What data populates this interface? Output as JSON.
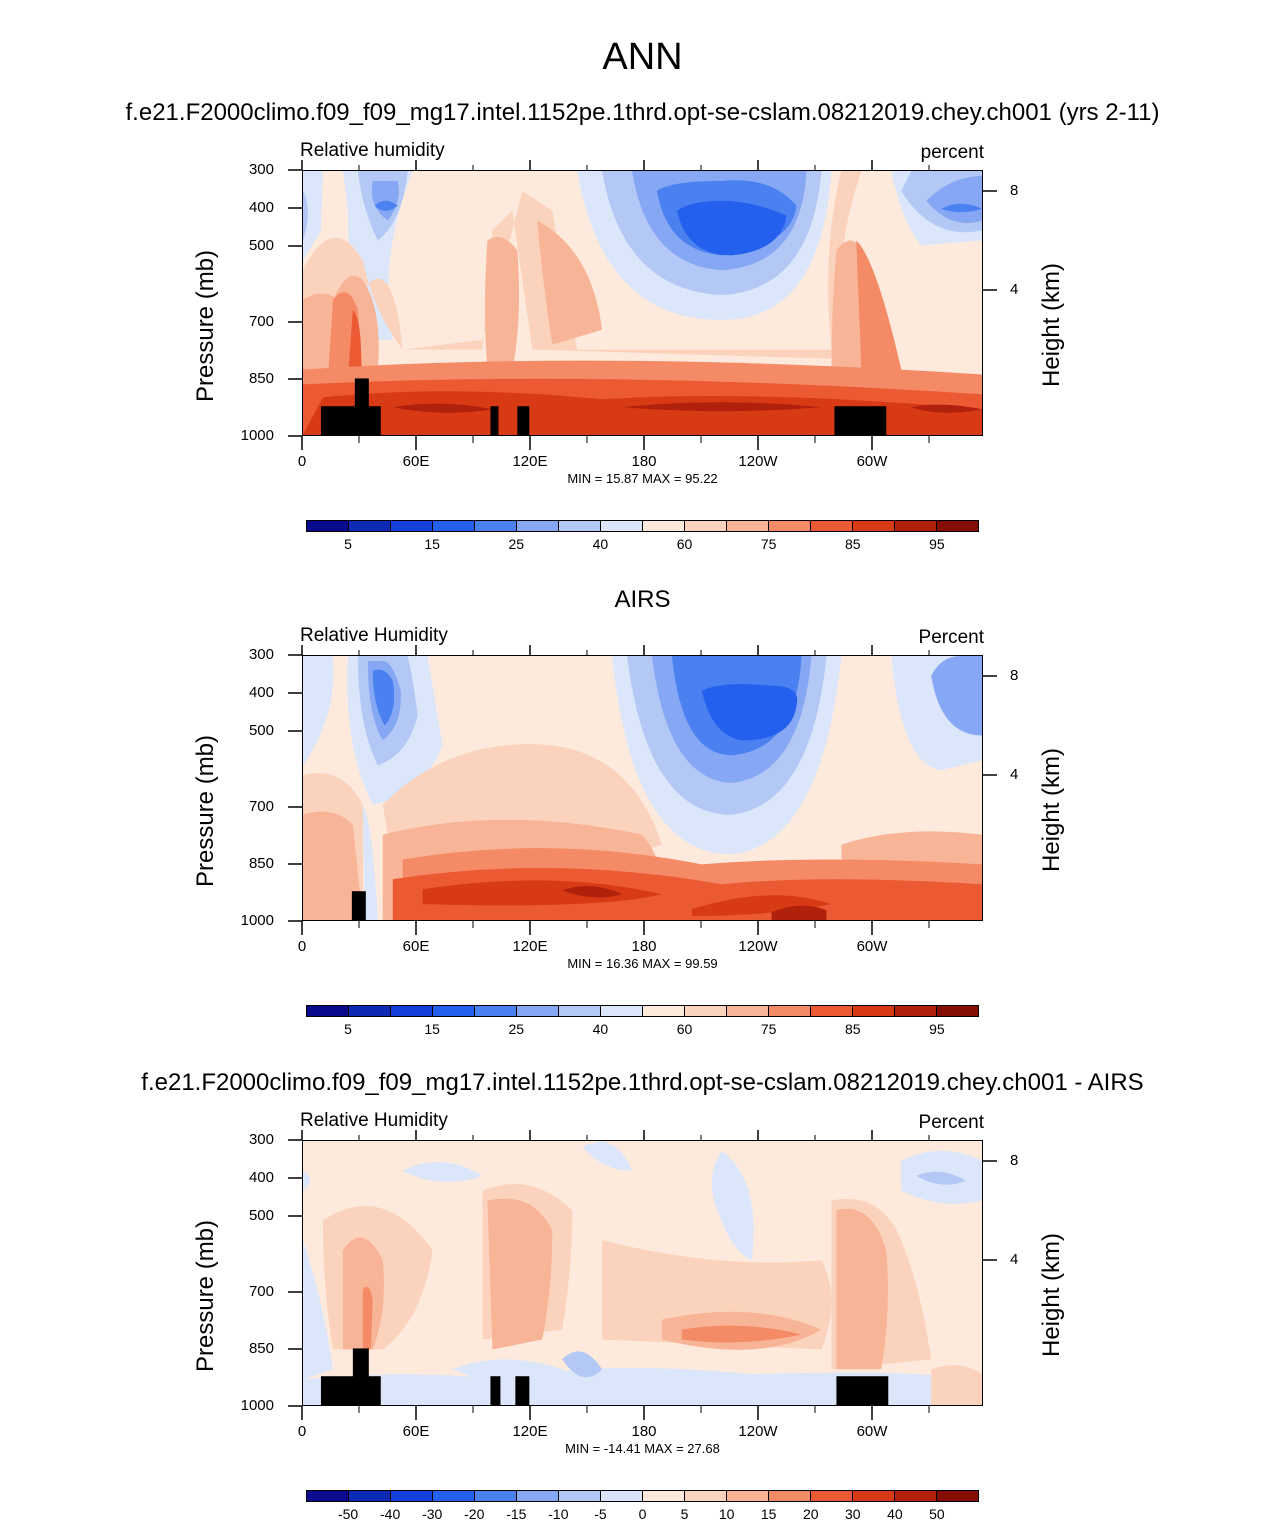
{
  "figure_title": "ANN",
  "panels": [
    {
      "title": "f.e21.F2000climo.f09_f09_mg17.intel.1152pe.1thrd.opt-se-cslam.08212019.chey.ch001 (yrs 2-11)",
      "variable": "Relative humidity",
      "units": "percent",
      "min_max": "MIN =  15.87  MAX =  95.22",
      "colorbar_labels": [
        "5",
        "15",
        "25",
        "40",
        "60",
        "75",
        "85",
        "95"
      ]
    },
    {
      "title": "AIRS",
      "variable": "Relative Humidity",
      "units": "Percent",
      "min_max": "MIN =  16.36  MAX =  99.59",
      "colorbar_labels": [
        "5",
        "15",
        "25",
        "40",
        "60",
        "75",
        "85",
        "95"
      ]
    },
    {
      "title": "f.e21.F2000climo.f09_f09_mg17.intel.1152pe.1thrd.opt-se-cslam.08212019.chey.ch001 - AIRS",
      "variable": "Relative Humidity",
      "units": "Percent",
      "min_max": "MIN = -14.41  MAX =  27.68",
      "colorbar_labels": [
        "-50",
        "-40",
        "-30",
        "-20",
        "-15",
        "-10",
        "-5",
        "0",
        "5",
        "10",
        "15",
        "20",
        "30",
        "40",
        "50"
      ]
    }
  ],
  "axes": {
    "y_left_label": "Pressure (mb)",
    "y_right_label": "Height (km)",
    "y_ticks": [
      "300",
      "400",
      "500",
      "700",
      "850",
      "1000"
    ],
    "y_right_ticks": [
      "8",
      "4"
    ],
    "x_ticks": [
      "0",
      "60E",
      "120E",
      "180",
      "120W",
      "60W"
    ]
  },
  "colors": {
    "abs_palette": [
      "#0a0a8c",
      "#0c2ab4",
      "#1240d8",
      "#2460ee",
      "#4a80f0",
      "#86a8f4",
      "#b4c8f6",
      "#dbe6fa",
      "#fdeadc",
      "#fbd3bd",
      "#f8b497",
      "#f48a66",
      "#ec5a34",
      "#d93a16",
      "#b0200a",
      "#840e04"
    ],
    "diff_palette": [
      "#0a0a8c",
      "#0c2ab4",
      "#1240d8",
      "#2460ee",
      "#4a80f0",
      "#86a8f4",
      "#b4c8f6",
      "#dbe6fa",
      "#fdeadc",
      "#fbd3bd",
      "#f8b497",
      "#f48a66",
      "#ec5a34",
      "#d93a16",
      "#b0200a",
      "#840e04"
    ]
  },
  "chart_data": [
    {
      "type": "heatmap",
      "title": "f.e21.F2000climo.f09_f09_mg17.intel.1152pe.1thrd.opt-se-cslam.08212019.chey.ch001 (yrs 2-11)",
      "variable": "Relative humidity",
      "units": "percent",
      "x": "longitude 0-360",
      "y": "pressure 300-1000 mb",
      "levels": [
        5,
        10,
        15,
        20,
        25,
        30,
        40,
        50,
        60,
        70,
        75,
        80,
        85,
        90,
        95
      ],
      "min": 15.87,
      "max": 95.22
    },
    {
      "type": "heatmap",
      "title": "AIRS",
      "variable": "Relative Humidity",
      "units": "Percent",
      "levels": [
        5,
        10,
        15,
        20,
        25,
        30,
        40,
        50,
        60,
        70,
        75,
        80,
        85,
        90,
        95
      ],
      "min": 16.36,
      "max": 99.59
    },
    {
      "type": "heatmap",
      "title": "f.e21.F2000climo.f09_f09_mg17.intel.1152pe.1thrd.opt-se-cslam.08212019.chey.ch001 - AIRS",
      "variable": "Relative Humidity",
      "units": "Percent",
      "levels": [
        -50,
        -40,
        -30,
        -20,
        -15,
        -10,
        -5,
        0,
        5,
        10,
        15,
        20,
        30,
        40,
        50
      ],
      "min": -14.41,
      "max": 27.68
    }
  ]
}
